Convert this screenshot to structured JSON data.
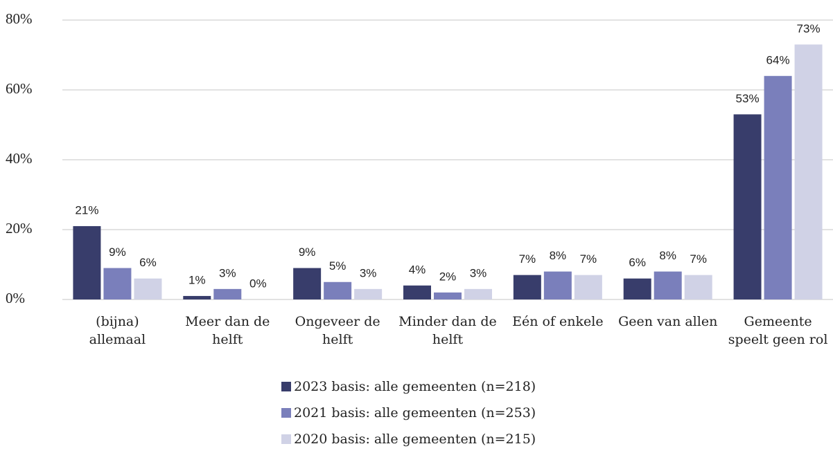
{
  "chart_data": {
    "type": "bar",
    "categories": [
      "(bijna) allemaal",
      "Meer dan de helft",
      "Ongeveer de helft",
      "Minder dan de helft",
      "Eén of enkele",
      "Geen van allen",
      "Gemeente speelt geen rol"
    ],
    "series": [
      {
        "name": "2023 basis: alle gemeenten (n=218)",
        "color": "#383d6b",
        "values": [
          21,
          1,
          9,
          4,
          7,
          6,
          53
        ],
        "value_labels": [
          "21%",
          "1%",
          "9%",
          "4%",
          "7%",
          "6%",
          "53%"
        ]
      },
      {
        "name": "2021 basis: alle gemeenten (n=253)",
        "color": "#7a7fbb",
        "values": [
          9,
          3,
          5,
          2,
          8,
          8,
          64
        ],
        "value_labels": [
          "9%",
          "3%",
          "5%",
          "2%",
          "8%",
          "8%",
          "64%"
        ]
      },
      {
        "name": "2020 basis: alle gemeenten (n=215)",
        "color": "#d0d2e6",
        "values": [
          6,
          0,
          3,
          3,
          7,
          7,
          73
        ],
        "value_labels": [
          "6%",
          "0%",
          "3%",
          "3%",
          "7%",
          "7%",
          "73%"
        ]
      }
    ],
    "ylim": [
      0,
      80
    ],
    "yticks": [
      {
        "value": 0,
        "label": "0%"
      },
      {
        "value": 20,
        "label": "20%"
      },
      {
        "value": 40,
        "label": "40%"
      },
      {
        "value": 60,
        "label": "60%"
      },
      {
        "value": 80,
        "label": "80%"
      }
    ],
    "grid": true,
    "legend": "bottom"
  }
}
